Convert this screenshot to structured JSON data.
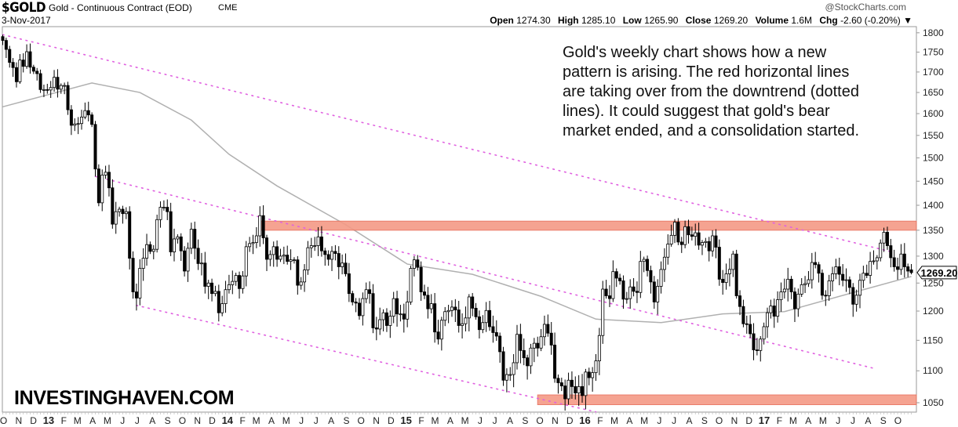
{
  "header": {
    "symbol": "$GOLD",
    "name": "Gold - Continuous Contract (EOD)",
    "exchange": "CME",
    "date": "3-Nov-2017",
    "credit": "@StockCharts.com",
    "quote": {
      "open_label": "Open",
      "open": "1274.30",
      "high_label": "High",
      "high": "1285.10",
      "low_label": "Low",
      "low": "1265.90",
      "close_label": "Close",
      "close": "1269.20",
      "volume_label": "Volume",
      "volume": "1.6M",
      "chg_label": "Chg",
      "chg": "-2.60 (-0.20%)",
      "chg_arrow": "▼"
    }
  },
  "annotation": [
    "Gold's weekly chart shows how a new",
    "pattern is arising. The red horizontal lines",
    "are taking over from the downtrend (dotted",
    "lines). It could suggest that gold's bear",
    "market ended, and a consolidation started."
  ],
  "watermark": "INVESTINGHAVEN.COM",
  "chart_data": {
    "type": "candlestick",
    "title": "$GOLD Gold - Continuous Contract (EOD) CME",
    "period": "weekly",
    "scale": "log",
    "ylim": [
      1050,
      1800
    ],
    "y_ticks": [
      1800,
      1750,
      1700,
      1650,
      1600,
      1550,
      1500,
      1450,
      1400,
      1350,
      1300,
      1250,
      1200,
      1150,
      1100,
      1050
    ],
    "x_start": "2012-10-05",
    "x_labels": [
      "O",
      "N",
      "D",
      "13",
      "F",
      "M",
      "A",
      "M",
      "J",
      "J",
      "A",
      "S",
      "O",
      "N",
      "D",
      "14",
      "F",
      "M",
      "A",
      "M",
      "J",
      "J",
      "A",
      "S",
      "O",
      "N",
      "D",
      "15",
      "F",
      "M",
      "A",
      "M",
      "J",
      "J",
      "A",
      "S",
      "O",
      "N",
      "D",
      "16",
      "F",
      "M",
      "A",
      "M",
      "J",
      "J",
      "A",
      "S",
      "O",
      "N",
      "D",
      "17",
      "F",
      "M",
      "A",
      "M",
      "J",
      "J",
      "A",
      "S",
      "O"
    ],
    "first_open": 1790,
    "last_candle": {
      "open": 1274.3,
      "high": 1285.1,
      "low": 1265.9,
      "close": 1269.2
    },
    "last_price_label": "1269.20",
    "closes": [
      1780,
      1757,
      1724,
      1711,
      1676,
      1730,
      1714,
      1751,
      1712,
      1702,
      1696,
      1657,
      1657,
      1656,
      1662,
      1687,
      1658,
      1667,
      1667,
      1609,
      1573,
      1576,
      1577,
      1592,
      1607,
      1597,
      1575,
      1476,
      1405,
      1463,
      1469,
      1436,
      1362,
      1387,
      1392,
      1383,
      1387,
      1296,
      1234,
      1223,
      1277,
      1296,
      1322,
      1309,
      1313,
      1371,
      1396,
      1396,
      1387,
      1308,
      1333,
      1337,
      1310,
      1272,
      1315,
      1352,
      1315,
      1286,
      1287,
      1244,
      1250,
      1231,
      1235,
      1197,
      1213,
      1238,
      1247,
      1253,
      1264,
      1240,
      1263,
      1318,
      1324,
      1326,
      1339,
      1379,
      1335,
      1294,
      1303,
      1318,
      1294,
      1300,
      1302,
      1290,
      1293,
      1293,
      1246,
      1252,
      1274,
      1316,
      1320,
      1320,
      1337,
      1310,
      1303,
      1294,
      1309,
      1305,
      1280,
      1287,
      1267,
      1231,
      1216,
      1214,
      1192,
      1222,
      1238,
      1231,
      1171,
      1169,
      1185,
      1197,
      1175,
      1191,
      1222,
      1195,
      1195,
      1186,
      1216,
      1277,
      1293,
      1279,
      1234,
      1228,
      1204,
      1213,
      1164,
      1152,
      1184,
      1199,
      1201,
      1207,
      1202,
      1175,
      1178,
      1188,
      1225,
      1205,
      1190,
      1168,
      1180,
      1201,
      1173,
      1163,
      1157,
      1131,
      1085,
      1094,
      1094,
      1113,
      1160,
      1133,
      1121,
      1108,
      1137,
      1145,
      1137,
      1156,
      1177,
      1162,
      1142,
      1088,
      1081,
      1076,
      1056,
      1085,
      1075,
      1065,
      1075,
      1061,
      1098,
      1089,
      1097,
      1116,
      1158,
      1239,
      1227,
      1222,
      1271,
      1259,
      1254,
      1221,
      1222,
      1243,
      1235,
      1233,
      1290,
      1294,
      1273,
      1252,
      1216,
      1244,
      1275,
      1298,
      1323,
      1340,
      1366,
      1327,
      1322,
      1357,
      1341,
      1338,
      1345,
      1321,
      1326,
      1328,
      1310,
      1339,
      1317,
      1257,
      1251,
      1267,
      1275,
      1304,
      1227,
      1208,
      1178,
      1177,
      1161,
      1134,
      1133,
      1152,
      1173,
      1197,
      1209,
      1191,
      1220,
      1234,
      1239,
      1257,
      1234,
      1204,
      1230,
      1247,
      1249,
      1256,
      1288,
      1284,
      1268,
      1228,
      1227,
      1254,
      1267,
      1280,
      1266,
      1255,
      1256,
      1242,
      1212,
      1228,
      1255,
      1268,
      1264,
      1290,
      1291,
      1297,
      1325,
      1346,
      1320,
      1297,
      1280,
      1275,
      1304,
      1280,
      1272,
      1269.2
    ],
    "moving_average": [
      [
        0,
        1616
      ],
      [
        26,
        1673
      ],
      [
        40,
        1650
      ],
      [
        55,
        1585
      ],
      [
        66,
        1508
      ],
      [
        80,
        1440
      ],
      [
        100,
        1361
      ],
      [
        118,
        1285
      ],
      [
        137,
        1266
      ],
      [
        157,
        1226
      ],
      [
        173,
        1186
      ],
      [
        192,
        1180
      ],
      [
        210,
        1195
      ],
      [
        228,
        1199
      ],
      [
        251,
        1238
      ],
      [
        265,
        1262
      ]
    ],
    "trendlines": [
      {
        "name": "upper-downtrend",
        "from": [
          0,
          1795
        ],
        "to": [
          260,
          1307
        ]
      },
      {
        "name": "middle-downtrend",
        "from": [
          27,
          1460
        ],
        "to": [
          254,
          1104
        ]
      },
      {
        "name": "lower-downtrend",
        "from": [
          39,
          1210
        ],
        "to": [
          173,
          1036
        ]
      }
    ],
    "resistance_bands": [
      {
        "name": "resistance-1350",
        "from_week": 75,
        "low": 1350,
        "high": 1368
      },
      {
        "name": "support-1050",
        "from_week": 156,
        "low": 1047,
        "high": 1062
      }
    ],
    "colors": {
      "up_fill": "#ffffff",
      "down_fill": "#000000",
      "ma": "#b0b0b0",
      "trendline": "#e060e0",
      "band_fill": "#f49a86",
      "band_stroke": "#e8705c"
    }
  }
}
